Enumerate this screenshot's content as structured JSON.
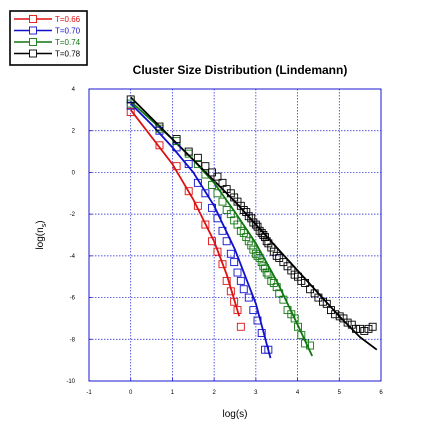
{
  "chart_data": {
    "type": "scatter",
    "title": "Cluster Size Distribution (Lindemann)",
    "xlabel": "log(s)",
    "ylabel": "log(n",
    "ylabel_sub": "s",
    "ylabel_close": ")",
    "xlim": [
      -1,
      6
    ],
    "ylim": [
      -10,
      4
    ],
    "xticks": [
      "-1",
      "0",
      "1",
      "2",
      "3",
      "4",
      "5",
      "6"
    ],
    "yticks": [
      "-10",
      "-8",
      "-6",
      "-4",
      "-2",
      "0",
      "2",
      "4"
    ],
    "grid": true,
    "legend_position": "top-left (outside plot)",
    "series": [
      {
        "name": "T=0.66",
        "color": "#dd1111",
        "x": [
          0,
          0.69,
          1.1,
          1.39,
          1.61,
          1.79,
          1.95,
          2.08,
          2.2,
          2.3,
          2.4,
          2.48,
          2.56,
          2.64
        ],
        "y": [
          2.9,
          1.3,
          0.3,
          -0.9,
          -1.6,
          -2.5,
          -3.3,
          -3.8,
          -4.4,
          -5.2,
          -5.7,
          -6.2,
          -6.6,
          -7.4
        ],
        "fit_x": [
          0,
          0.5,
          1.0,
          1.5,
          2.0,
          2.3,
          2.6
        ],
        "fit_y": [
          3.0,
          1.7,
          0.4,
          -1.3,
          -3.3,
          -4.9,
          -6.9
        ]
      },
      {
        "name": "T=0.70",
        "color": "#1111cc",
        "x": [
          0,
          0.69,
          1.1,
          1.39,
          1.61,
          1.79,
          1.95,
          2.08,
          2.2,
          2.3,
          2.4,
          2.48,
          2.56,
          2.64,
          2.71,
          2.83,
          2.94,
          3.04,
          3.14,
          3.22,
          3.3
        ],
        "y": [
          3.2,
          2.0,
          1.2,
          0.4,
          -0.5,
          -1.0,
          -1.7,
          -2.2,
          -2.8,
          -3.3,
          -3.9,
          -4.3,
          -4.8,
          -5.2,
          -5.6,
          -6.0,
          -6.6,
          -7.1,
          -7.7,
          -8.5,
          -8.5
        ],
        "fit_x": [
          0,
          0.5,
          1.0,
          1.5,
          2.0,
          2.5,
          3.0,
          3.35
        ],
        "fit_y": [
          3.3,
          2.3,
          1.2,
          0.0,
          -1.6,
          -3.7,
          -6.3,
          -8.9
        ]
      },
      {
        "name": "T=0.74",
        "color": "#117711",
        "x": [
          0,
          0.69,
          1.1,
          1.39,
          1.61,
          1.79,
          1.95,
          2.08,
          2.2,
          2.3,
          2.4,
          2.48,
          2.56,
          2.64,
          2.71,
          2.77,
          2.83,
          2.89,
          2.94,
          3.0,
          3.04,
          3.09,
          3.14,
          3.18,
          3.22,
          3.26,
          3.3,
          3.37,
          3.43,
          3.5,
          3.56,
          3.66,
          3.76,
          3.85,
          3.93,
          4.01,
          4.09,
          4.18,
          4.3
        ],
        "y": [
          3.3,
          2.1,
          1.5,
          0.9,
          0.4,
          -0.1,
          -0.6,
          -1.0,
          -1.4,
          -1.8,
          -2.0,
          -2.3,
          -2.5,
          -2.8,
          -2.9,
          -3.1,
          -3.3,
          -3.5,
          -3.7,
          -3.9,
          -4.0,
          -4.1,
          -4.3,
          -4.5,
          -4.6,
          -4.8,
          -4.9,
          -5.2,
          -5.3,
          -5.5,
          -5.8,
          -6.1,
          -6.6,
          -6.8,
          -7.0,
          -7.4,
          -7.8,
          -8.2,
          -8.3
        ],
        "fit_x": [
          0,
          0.5,
          1.0,
          1.5,
          2.0,
          2.5,
          3.0,
          3.5,
          4.0,
          4.35
        ],
        "fit_y": [
          3.4,
          2.5,
          1.6,
          0.6,
          -0.5,
          -1.9,
          -3.4,
          -5.2,
          -7.3,
          -8.8
        ]
      },
      {
        "name": "T=0.78",
        "color": "#000000",
        "x": [
          0,
          0.69,
          1.1,
          1.39,
          1.61,
          1.79,
          1.95,
          2.08,
          2.2,
          2.3,
          2.4,
          2.48,
          2.56,
          2.64,
          2.71,
          2.77,
          2.83,
          2.89,
          2.94,
          3.0,
          3.04,
          3.09,
          3.14,
          3.18,
          3.22,
          3.26,
          3.3,
          3.37,
          3.43,
          3.5,
          3.56,
          3.66,
          3.76,
          3.85,
          3.93,
          4.01,
          4.09,
          4.18,
          4.3,
          4.41,
          4.5,
          4.61,
          4.7,
          4.8,
          4.9,
          5.01,
          5.1,
          5.2,
          5.3,
          5.4,
          5.5,
          5.6,
          5.7,
          5.8
        ],
        "y": [
          3.5,
          2.2,
          1.6,
          1.0,
          0.7,
          0.3,
          0.0,
          -0.2,
          -0.5,
          -0.8,
          -1.0,
          -1.2,
          -1.4,
          -1.6,
          -1.8,
          -1.9,
          -2.1,
          -2.2,
          -2.4,
          -2.5,
          -2.6,
          -2.8,
          -2.9,
          -3.0,
          -3.1,
          -3.3,
          -3.4,
          -3.6,
          -3.8,
          -4.0,
          -4.1,
          -4.3,
          -4.5,
          -4.7,
          -4.9,
          -5.0,
          -5.2,
          -5.3,
          -5.6,
          -5.8,
          -6.0,
          -6.2,
          -6.3,
          -6.6,
          -6.8,
          -6.9,
          -7.0,
          -7.2,
          -7.3,
          -7.5,
          -7.5,
          -7.6,
          -7.5,
          -7.4
        ],
        "fit_x": [
          0,
          0.5,
          1.0,
          1.5,
          2.0,
          2.5,
          3.0,
          3.5,
          4.0,
          4.5,
          5.0,
          5.5,
          5.9
        ],
        "fit_y": [
          3.6,
          2.6,
          1.6,
          0.6,
          -0.4,
          -1.4,
          -2.5,
          -3.6,
          -4.7,
          -5.8,
          -6.9,
          -7.9,
          -8.5
        ]
      }
    ]
  }
}
